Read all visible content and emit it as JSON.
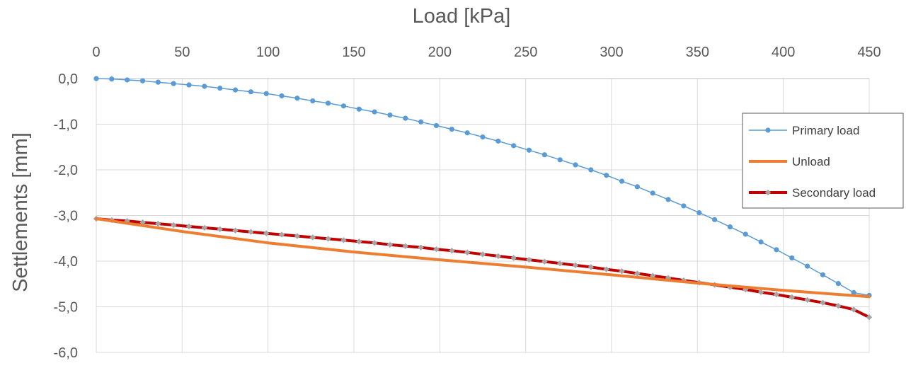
{
  "chart_data": {
    "type": "line",
    "title": "",
    "xlabel": "Load [kPa]",
    "ylabel": "Settlements [mm]",
    "xlim": [
      0,
      450
    ],
    "ylim": [
      -6,
      0
    ],
    "x_ticks": [
      0,
      50,
      100,
      150,
      200,
      250,
      300,
      350,
      400,
      450
    ],
    "x_tick_labels": [
      "0",
      "50",
      "100",
      "150",
      "200",
      "250",
      "300",
      "350",
      "400",
      "450"
    ],
    "y_ticks": [
      0,
      -1,
      -2,
      -3,
      -4,
      -5,
      -6
    ],
    "y_tick_labels": [
      "0,0",
      "-1,0",
      "-2,0",
      "-3,0",
      "-4,0",
      "-5,0",
      "-6,0"
    ],
    "x_axis_position": "top",
    "grid": true,
    "legend_position": "right",
    "series": [
      {
        "name": "Primary load",
        "color": "#5B9BD5",
        "marker": "circle",
        "x": [
          0,
          9,
          18,
          27,
          36,
          45,
          54,
          63,
          72,
          81,
          90,
          99,
          108,
          117,
          126,
          135,
          144,
          153,
          162,
          171,
          180,
          189,
          198,
          207,
          216,
          225,
          234,
          243,
          252,
          261,
          270,
          279,
          288,
          297,
          306,
          315,
          324,
          333,
          342,
          351,
          360,
          369,
          378,
          387,
          396,
          405,
          414,
          423,
          432,
          441,
          450
        ],
        "y": [
          0.0,
          -0.01,
          -0.03,
          -0.05,
          -0.08,
          -0.11,
          -0.14,
          -0.17,
          -0.21,
          -0.25,
          -0.29,
          -0.33,
          -0.38,
          -0.43,
          -0.49,
          -0.54,
          -0.6,
          -0.67,
          -0.73,
          -0.8,
          -0.87,
          -0.95,
          -1.03,
          -1.11,
          -1.19,
          -1.28,
          -1.37,
          -1.47,
          -1.57,
          -1.67,
          -1.78,
          -1.89,
          -2.0,
          -2.12,
          -2.25,
          -2.37,
          -2.51,
          -2.65,
          -2.79,
          -2.94,
          -3.09,
          -3.25,
          -3.41,
          -3.58,
          -3.75,
          -3.93,
          -4.11,
          -4.3,
          -4.49,
          -4.69,
          -4.75
        ]
      },
      {
        "name": "Unload",
        "color": "#ED7D31",
        "marker": "none",
        "x": [
          0,
          50,
          100,
          150,
          200,
          250,
          300,
          350,
          400,
          450
        ],
        "y": [
          -3.07,
          -3.35,
          -3.6,
          -3.8,
          -3.97,
          -4.13,
          -4.3,
          -4.48,
          -4.64,
          -4.78
        ]
      },
      {
        "name": "Secondary load",
        "color": "#C00000",
        "marker": "diamond",
        "marker_color": "#A5A5A5",
        "x": [
          0,
          9,
          18,
          27,
          36,
          45,
          54,
          63,
          72,
          81,
          90,
          99,
          108,
          117,
          126,
          135,
          144,
          153,
          162,
          171,
          180,
          189,
          198,
          207,
          216,
          225,
          234,
          243,
          252,
          261,
          270,
          279,
          288,
          297,
          306,
          315,
          324,
          333,
          342,
          351,
          360,
          369,
          378,
          387,
          396,
          405,
          414,
          423,
          432,
          441,
          450
        ],
        "y": [
          -3.07,
          -3.1,
          -3.12,
          -3.15,
          -3.18,
          -3.21,
          -3.24,
          -3.27,
          -3.3,
          -3.33,
          -3.36,
          -3.39,
          -3.42,
          -3.45,
          -3.48,
          -3.51,
          -3.54,
          -3.57,
          -3.6,
          -3.64,
          -3.67,
          -3.7,
          -3.74,
          -3.77,
          -3.81,
          -3.85,
          -3.89,
          -3.93,
          -3.97,
          -4.01,
          -4.05,
          -4.09,
          -4.13,
          -4.18,
          -4.22,
          -4.27,
          -4.32,
          -4.37,
          -4.42,
          -4.47,
          -4.52,
          -4.57,
          -4.62,
          -4.68,
          -4.73,
          -4.79,
          -4.85,
          -4.91,
          -4.98,
          -5.06,
          -5.23
        ]
      }
    ]
  }
}
